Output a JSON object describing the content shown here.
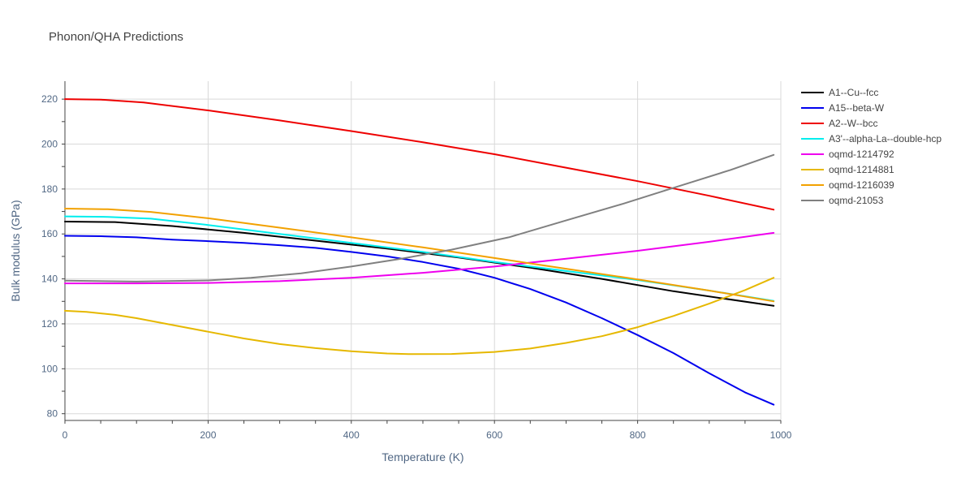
{
  "chart_data": {
    "type": "line",
    "title": "Phonon/QHA Predictions",
    "xlabel": "Temperature (K)",
    "ylabel": "Bulk modulus (GPa)",
    "xlim": [
      0,
      1000
    ],
    "ylim": [
      77,
      228
    ],
    "x_ticks": [
      0,
      200,
      400,
      600,
      800,
      1000
    ],
    "y_ticks": [
      80,
      100,
      120,
      140,
      160,
      180,
      200,
      220
    ],
    "grid": true,
    "legend_position": "right",
    "series": [
      {
        "name": "A1--Cu--fcc",
        "color": "#000000",
        "x": [
          0,
          70,
          150,
          250,
          350,
          450,
          550,
          650,
          750,
          850,
          990
        ],
        "y": [
          165.5,
          165.3,
          163.5,
          160.5,
          157.0,
          153.5,
          149.5,
          145.0,
          140.0,
          134.5,
          128.0
        ]
      },
      {
        "name": "A15--beta-W",
        "color": "#0000ee",
        "x": [
          0,
          50,
          100,
          150,
          200,
          250,
          300,
          350,
          400,
          450,
          500,
          550,
          600,
          650,
          700,
          750,
          800,
          850,
          900,
          950,
          990
        ],
        "y": [
          159.2,
          159.0,
          158.5,
          157.5,
          156.8,
          156.0,
          155.0,
          153.8,
          152.0,
          150.0,
          147.5,
          144.5,
          140.5,
          135.5,
          129.5,
          122.5,
          115.0,
          107.0,
          98.0,
          89.5,
          84.0
        ]
      },
      {
        "name": "A2--W--bcc",
        "color": "#ee0000",
        "x": [
          0,
          50,
          110,
          200,
          300,
          400,
          500,
          600,
          700,
          800,
          900,
          990
        ],
        "y": [
          220.0,
          219.8,
          218.5,
          215.0,
          210.5,
          205.8,
          200.8,
          195.5,
          189.5,
          183.5,
          177.0,
          170.8
        ]
      },
      {
        "name": "A3'--alpha-La--double-hcp",
        "color": "#00eeee",
        "x": [
          0,
          60,
          120,
          200,
          300,
          400,
          500,
          600,
          700,
          800,
          900,
          990
        ],
        "y": [
          167.8,
          167.6,
          166.8,
          164.0,
          160.0,
          156.0,
          152.0,
          147.5,
          143.5,
          139.5,
          134.8,
          130.2
        ]
      },
      {
        "name": "oqmd-1214792",
        "color": "#ee00ee",
        "x": [
          0,
          100,
          200,
          300,
          400,
          500,
          600,
          700,
          800,
          900,
          990
        ],
        "y": [
          138.0,
          138.0,
          138.2,
          139.0,
          140.5,
          142.7,
          145.5,
          149.0,
          152.5,
          156.5,
          160.5
        ]
      },
      {
        "name": "oqmd-1214881",
        "color": "#e6b800",
        "x": [
          0,
          30,
          70,
          100,
          150,
          200,
          250,
          300,
          350,
          400,
          450,
          480,
          540,
          600,
          650,
          700,
          750,
          800,
          850,
          900,
          950,
          990
        ],
        "y": [
          125.8,
          125.3,
          124.0,
          122.5,
          119.5,
          116.5,
          113.5,
          111.0,
          109.2,
          107.8,
          106.8,
          106.5,
          106.6,
          107.5,
          109.0,
          111.5,
          114.5,
          118.5,
          123.5,
          129.0,
          135.0,
          140.5
        ]
      },
      {
        "name": "oqmd-1216039",
        "color": "#f2a100",
        "x": [
          0,
          60,
          120,
          200,
          300,
          400,
          500,
          600,
          700,
          800,
          900,
          990
        ],
        "y": [
          171.3,
          171.0,
          169.8,
          167.0,
          162.8,
          158.5,
          154.0,
          149.3,
          144.5,
          139.8,
          134.8,
          130.0
        ]
      },
      {
        "name": "oqmd-21053",
        "color": "#808080",
        "x": [
          0,
          100,
          200,
          260,
          330,
          400,
          470,
          540,
          620,
          700,
          780,
          860,
          930,
          990
        ],
        "y": [
          139.2,
          138.8,
          139.3,
          140.5,
          142.5,
          145.5,
          149.0,
          153.0,
          158.5,
          166.0,
          173.5,
          181.5,
          188.5,
          195.2
        ]
      }
    ]
  }
}
